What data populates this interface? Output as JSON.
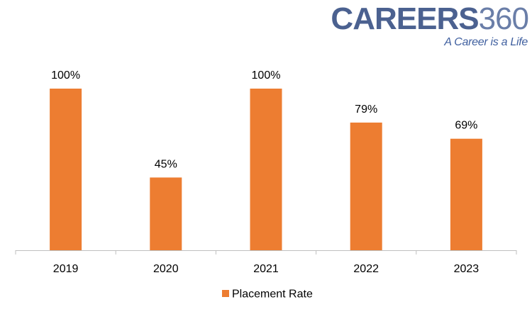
{
  "logo": {
    "word": "CAREERS",
    "number": "360",
    "tagline": "A Career is a Life"
  },
  "chart_data": {
    "type": "bar",
    "categories": [
      "2019",
      "2020",
      "2021",
      "2022",
      "2023"
    ],
    "series": [
      {
        "name": "Placement Rate",
        "values": [
          100,
          45,
          100,
          79,
          69
        ],
        "labels": [
          "100%",
          "45%",
          "100%",
          "79%",
          "69%"
        ],
        "color": "#ed7d31"
      }
    ],
    "title": "",
    "xlabel": "",
    "ylabel": "",
    "ylim": [
      0,
      100
    ],
    "grid": false,
    "legend": "bottom",
    "axis_color": "#bfbfbf"
  }
}
